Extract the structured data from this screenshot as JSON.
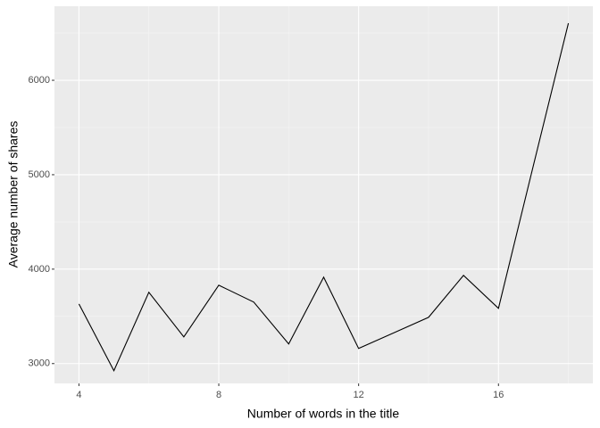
{
  "chart_data": {
    "type": "line",
    "x_label": "Number of words in the title",
    "y_label": "Average number of shares",
    "x": [
      4,
      5,
      6,
      7,
      8,
      9,
      10,
      11,
      12,
      13,
      14,
      15,
      16,
      17,
      18
    ],
    "series": [
      {
        "color": "#000000",
        "values": [
          3632,
          2925,
          3755,
          3283,
          3830,
          3651,
          3208,
          3915,
          3160,
          3325,
          3490,
          3934,
          3585,
          5100,
          6604
        ]
      }
    ],
    "xlim": [
      3.3,
      18.7
    ],
    "xticks": [
      4,
      8,
      12,
      16
    ],
    "ylim": [
      2790,
      6784
    ],
    "yticks": [
      3000,
      4000,
      5000,
      6000
    ],
    "grid": true
  }
}
